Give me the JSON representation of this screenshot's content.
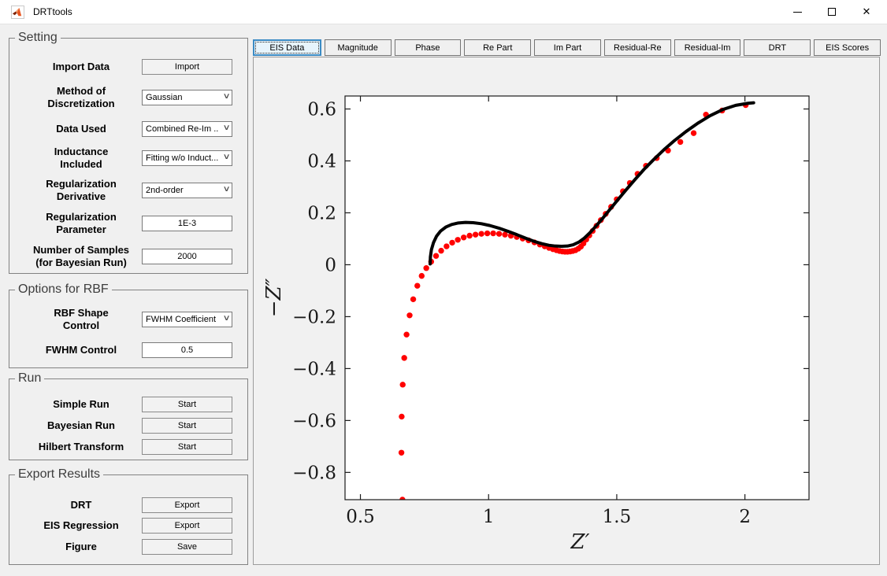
{
  "window": {
    "title": "DRTtools",
    "close_glyph": "✕"
  },
  "sidebar": {
    "panels": [
      {
        "title": "Setting",
        "rows": [
          {
            "label": "Import Data",
            "type": "button",
            "value": "Import"
          },
          {
            "label": "Method of\nDiscretization",
            "type": "select",
            "value": "Gaussian"
          },
          {
            "label": "Data Used",
            "type": "select",
            "value": "Combined Re-Im ..."
          },
          {
            "label": "Inductance\nIncluded",
            "type": "select",
            "value": "Fitting w/o Induct..."
          },
          {
            "label": "Regularization\nDerivative",
            "type": "select",
            "value": "2nd-order"
          },
          {
            "label": "Regularization\nParameter",
            "type": "input",
            "value": "1E-3"
          },
          {
            "label": "Number of Samples\n(for Bayesian Run)",
            "type": "input",
            "value": "2000"
          }
        ]
      },
      {
        "title": "Options for RBF",
        "rows": [
          {
            "label": "RBF Shape\nControl",
            "type": "select",
            "value": "FWHM Coefficient"
          },
          {
            "label": "FWHM Control",
            "type": "input",
            "value": "0.5"
          }
        ]
      },
      {
        "title": "Run",
        "rows": [
          {
            "label": "Simple Run",
            "type": "button",
            "value": "Start"
          },
          {
            "label": "Bayesian Run",
            "type": "button",
            "value": "Start"
          },
          {
            "label": "Hilbert Transform",
            "type": "button",
            "value": "Start"
          }
        ]
      },
      {
        "title": "Export Results",
        "rows": [
          {
            "label": "DRT",
            "type": "button",
            "value": "Export"
          },
          {
            "label": "EIS Regression",
            "type": "button",
            "value": "Export"
          },
          {
            "label": "Figure",
            "type": "button",
            "value": "Save"
          }
        ]
      }
    ]
  },
  "tabs": {
    "items": [
      "EIS Data",
      "Magnitude",
      "Phase",
      "Re Part",
      "Im Part",
      "Residual-Re",
      "Residual-Im",
      "DRT",
      "EIS Scores"
    ],
    "selected": "EIS Data"
  },
  "chart_data": {
    "type": "scatter",
    "title": "",
    "xlabel": "Z'",
    "ylabel": "-Z''",
    "xlim": [
      0.44,
      2.25
    ],
    "ylim": [
      -0.905,
      0.65
    ],
    "xticks": [
      0.5,
      1,
      1.5,
      2
    ],
    "yticks": [
      -0.8,
      -0.6,
      -0.4,
      -0.2,
      0,
      0.2,
      0.4,
      0.6
    ],
    "grid": false,
    "legend": "none",
    "series": [
      {
        "name": "experimental-data",
        "type": "scatter",
        "color": "#ff0000",
        "marker_radius": 3.7,
        "points": [
          [
            0.664,
            -0.905
          ],
          [
            0.66,
            -0.724
          ],
          [
            0.661,
            -0.585
          ],
          [
            0.665,
            -0.462
          ],
          [
            0.671,
            -0.359
          ],
          [
            0.68,
            -0.269
          ],
          [
            0.692,
            -0.195
          ],
          [
            0.706,
            -0.133
          ],
          [
            0.722,
            -0.081
          ],
          [
            0.739,
            -0.043
          ],
          [
            0.757,
            -0.013
          ],
          [
            0.776,
            0.012
          ],
          [
            0.795,
            0.034
          ],
          [
            0.815,
            0.054
          ],
          [
            0.836,
            0.071
          ],
          [
            0.858,
            0.085
          ],
          [
            0.88,
            0.096
          ],
          [
            0.903,
            0.105
          ],
          [
            0.926,
            0.112
          ],
          [
            0.949,
            0.116
          ],
          [
            0.972,
            0.119
          ],
          [
            0.995,
            0.121
          ],
          [
            1.018,
            0.121
          ],
          [
            1.041,
            0.119
          ],
          [
            1.064,
            0.116
          ],
          [
            1.087,
            0.112
          ],
          [
            1.11,
            0.107
          ],
          [
            1.133,
            0.101
          ],
          [
            1.156,
            0.094
          ],
          [
            1.179,
            0.086
          ],
          [
            1.2,
            0.078
          ],
          [
            1.219,
            0.071
          ],
          [
            1.236,
            0.065
          ],
          [
            1.251,
            0.06
          ],
          [
            1.265,
            0.056
          ],
          [
            1.277,
            0.053
          ],
          [
            1.288,
            0.051
          ],
          [
            1.298,
            0.05
          ],
          [
            1.308,
            0.05
          ],
          [
            1.318,
            0.051
          ],
          [
            1.328,
            0.053
          ],
          [
            1.339,
            0.056
          ],
          [
            1.35,
            0.062
          ],
          [
            1.36,
            0.07
          ],
          [
            1.37,
            0.082
          ],
          [
            1.381,
            0.097
          ],
          [
            1.393,
            0.113
          ],
          [
            1.406,
            0.13
          ],
          [
            1.421,
            0.15
          ],
          [
            1.438,
            0.172
          ],
          [
            1.457,
            0.196
          ],
          [
            1.478,
            0.223
          ],
          [
            1.5,
            0.252
          ],
          [
            1.524,
            0.283
          ],
          [
            1.551,
            0.315
          ],
          [
            1.581,
            0.35
          ],
          [
            1.614,
            0.381
          ],
          [
            1.656,
            0.411
          ],
          [
            1.7,
            0.44
          ],
          [
            1.748,
            0.473
          ],
          [
            1.8,
            0.507
          ],
          [
            1.848,
            0.578
          ],
          [
            1.911,
            0.594
          ],
          [
            2.003,
            0.615
          ]
        ]
      },
      {
        "name": "fit-line",
        "type": "line",
        "color": "#000000",
        "line_width": 4,
        "points": [
          [
            0.772,
            0.003
          ],
          [
            0.773,
            0.03
          ],
          [
            0.777,
            0.058
          ],
          [
            0.785,
            0.085
          ],
          [
            0.797,
            0.11
          ],
          [
            0.813,
            0.13
          ],
          [
            0.833,
            0.145
          ],
          [
            0.856,
            0.155
          ],
          [
            0.882,
            0.161
          ],
          [
            0.91,
            0.163
          ],
          [
            0.94,
            0.162
          ],
          [
            0.972,
            0.158
          ],
          [
            1.005,
            0.151
          ],
          [
            1.04,
            0.141
          ],
          [
            1.075,
            0.129
          ],
          [
            1.11,
            0.116
          ],
          [
            1.145,
            0.102
          ],
          [
            1.178,
            0.09
          ],
          [
            1.208,
            0.081
          ],
          [
            1.235,
            0.075
          ],
          [
            1.26,
            0.072
          ],
          [
            1.285,
            0.071
          ],
          [
            1.308,
            0.072
          ],
          [
            1.33,
            0.077
          ],
          [
            1.352,
            0.087
          ],
          [
            1.374,
            0.103
          ],
          [
            1.396,
            0.124
          ],
          [
            1.42,
            0.15
          ],
          [
            1.446,
            0.18
          ],
          [
            1.474,
            0.214
          ],
          [
            1.504,
            0.25
          ],
          [
            1.536,
            0.288
          ],
          [
            1.57,
            0.327
          ],
          [
            1.606,
            0.367
          ],
          [
            1.644,
            0.405
          ],
          [
            1.684,
            0.443
          ],
          [
            1.726,
            0.479
          ],
          [
            1.77,
            0.513
          ],
          [
            1.816,
            0.545
          ],
          [
            1.864,
            0.574
          ],
          [
            1.914,
            0.598
          ],
          [
            1.964,
            0.614
          ],
          [
            2.012,
            0.622
          ],
          [
            2.034,
            0.624
          ]
        ]
      }
    ]
  }
}
